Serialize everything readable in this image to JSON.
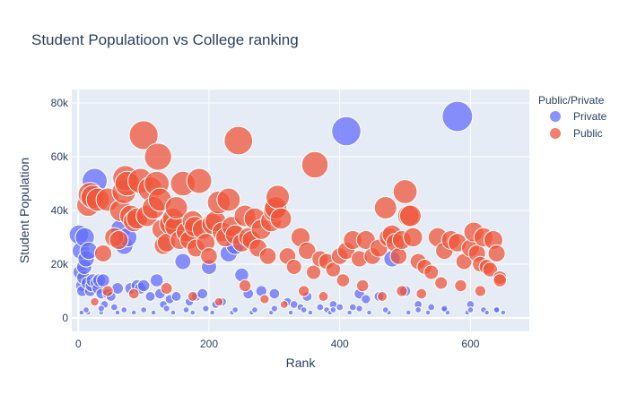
{
  "chart_data": {
    "type": "scatter",
    "title": "Student Populatioon vs College ranking",
    "xlabel": "Rank",
    "ylabel": "Student Population",
    "xlim": [
      -10,
      690
    ],
    "ylim": [
      -5000,
      85000
    ],
    "x_ticks": [
      0,
      200,
      400,
      600
    ],
    "y_ticks": [
      0,
      20000,
      40000,
      60000,
      80000
    ],
    "y_tick_labels": [
      "0",
      "20k",
      "40k",
      "60k",
      "80k"
    ],
    "grid": true,
    "marker_size_encodes": "Student Population",
    "legend": {
      "title": "Public/Private",
      "placement": "right",
      "entries": [
        "Private",
        "Public"
      ]
    },
    "series": [
      {
        "name": "Private",
        "color": "#636efa",
        "x": [
          1,
          3,
          4,
          5,
          6,
          8,
          9,
          10,
          12,
          14,
          16,
          18,
          20,
          22,
          25,
          28,
          30,
          32,
          35,
          38,
          40,
          45,
          50,
          55,
          60,
          65,
          70,
          75,
          80,
          90,
          95,
          100,
          110,
          120,
          125,
          130,
          140,
          150,
          160,
          170,
          180,
          190,
          200,
          210,
          220,
          230,
          240,
          250,
          260,
          280,
          300,
          320,
          330,
          340,
          350,
          370,
          380,
          390,
          400,
          410,
          420,
          430,
          440,
          460,
          480,
          500,
          520,
          540,
          560,
          580,
          600,
          620,
          640,
          650,
          5,
          15,
          35,
          60,
          85,
          115,
          145,
          175,
          205,
          235,
          265,
          295,
          325,
          355,
          385,
          415,
          445,
          475,
          505,
          535,
          565,
          595,
          625,
          12,
          35,
          70,
          100,
          135,
          165,
          195,
          240,
          270,
          300,
          345,
          390,
          430,
          470,
          520,
          560,
          600,
          640
        ],
        "y": [
          31000,
          17000,
          25000,
          12000,
          10000,
          15000,
          19000,
          30000,
          22000,
          13000,
          25000,
          10000,
          12000,
          14000,
          51000,
          13000,
          11000,
          14000,
          9000,
          14000,
          5000,
          9000,
          8000,
          4000,
          11000,
          33000,
          27000,
          30000,
          11000,
          12000,
          11000,
          12000,
          8000,
          14000,
          9000,
          5000,
          7000,
          8000,
          21000,
          6000,
          8000,
          9000,
          19000,
          5000,
          6000,
          24000,
          27000,
          16000,
          9000,
          10000,
          9000,
          6000,
          5000,
          4000,
          8000,
          4000,
          3000,
          5000,
          4000,
          69500,
          4000,
          9000,
          7000,
          8000,
          22000,
          10000,
          5000,
          4000,
          3000,
          75000,
          5000,
          3000,
          3000,
          2000,
          2000,
          2000,
          2000,
          2000,
          2000,
          2000,
          2000,
          2000,
          2000,
          2000,
          2000,
          2000,
          2000,
          2000,
          2000,
          2000,
          2000,
          2000,
          2000,
          2000,
          2000,
          2000,
          2000,
          3000,
          3500,
          3000,
          3000,
          3500,
          3000,
          3500,
          3000,
          3000,
          3500,
          3000,
          3000,
          3500,
          3000,
          3000,
          3500,
          3000,
          3000
        ]
      },
      {
        "name": "Public",
        "color": "#ef553b",
        "x": [
          15,
          18,
          22,
          30,
          38,
          45,
          55,
          62,
          65,
          70,
          72,
          75,
          80,
          85,
          90,
          95,
          100,
          105,
          110,
          115,
          120,
          122,
          125,
          128,
          130,
          135,
          140,
          145,
          148,
          150,
          155,
          160,
          165,
          170,
          175,
          178,
          180,
          185,
          190,
          195,
          200,
          205,
          210,
          215,
          220,
          225,
          230,
          235,
          240,
          245,
          250,
          255,
          260,
          265,
          270,
          275,
          280,
          290,
          295,
          300,
          302,
          305,
          310,
          320,
          330,
          340,
          350,
          360,
          362,
          370,
          380,
          390,
          400,
          410,
          420,
          430,
          440,
          450,
          460,
          470,
          475,
          480,
          485,
          490,
          495,
          500,
          505,
          508,
          512,
          520,
          530,
          540,
          550,
          560,
          570,
          580,
          590,
          600,
          605,
          610,
          615,
          620,
          625,
          630,
          635,
          640,
          645,
          25,
          45,
          85,
          135,
          175,
          215,
          255,
          285,
          315,
          345,
          375,
          405,
          435,
          465,
          495,
          525,
          555,
          585,
          615,
          645
        ],
        "y": [
          42000,
          46000,
          45000,
          44000,
          24000,
          44000,
          30000,
          29000,
          40000,
          47000,
          52000,
          50000,
          38000,
          36000,
          37000,
          51000,
          68000,
          38000,
          48000,
          41000,
          50000,
          60000,
          44000,
          33000,
          27000,
          28000,
          35000,
          37000,
          34000,
          41000,
          29000,
          50000,
          32000,
          29000,
          36000,
          34000,
          26000,
          51000,
          33000,
          28000,
          23000,
          35000,
          36000,
          43000,
          32000,
          30000,
          44000,
          34000,
          31000,
          66000,
          28000,
          38000,
          30000,
          29000,
          37000,
          26000,
          33000,
          23000,
          36000,
          40000,
          41000,
          45000,
          37000,
          23000,
          19000,
          30000,
          25000,
          17000,
          57000,
          22000,
          21000,
          18000,
          23000,
          25000,
          29000,
          22000,
          29000,
          23000,
          26000,
          41000,
          30000,
          31000,
          28000,
          23000,
          29000,
          47000,
          38000,
          38000,
          30000,
          21000,
          19000,
          17000,
          30000,
          25000,
          29000,
          28000,
          21000,
          26000,
          32000,
          24000,
          20000,
          30000,
          19000,
          18000,
          29000,
          24000,
          15000,
          6000,
          10000,
          9000,
          11000,
          8000,
          6000,
          12000,
          7000,
          5000,
          10000,
          8000,
          14000,
          12000,
          8000,
          10000,
          9000,
          13000,
          12000,
          10000,
          14000
        ]
      }
    ]
  }
}
